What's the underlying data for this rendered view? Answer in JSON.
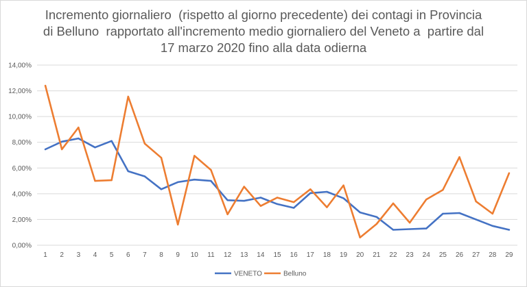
{
  "chart_data": {
    "type": "line",
    "title_lines": [
      "Incremento giornaliero  (rispetto al giorno precedente) dei contagi in Provincia",
      "di Belluno  rapportato all'incremento medio giornaliero del Veneto a  partire dal",
      "17 marzo 2020 fino alla data odierna"
    ],
    "categories": [
      "1",
      "2",
      "3",
      "4",
      "5",
      "6",
      "7",
      "8",
      "9",
      "10",
      "11",
      "12",
      "13",
      "14",
      "15",
      "16",
      "17",
      "18",
      "19",
      "20",
      "21",
      "22",
      "23",
      "24",
      "25",
      "26",
      "27",
      "28",
      "29"
    ],
    "y_ticks": [
      "0,00%",
      "2,00%",
      "4,00%",
      "6,00%",
      "8,00%",
      "10,00%",
      "12,00%",
      "14,00%"
    ],
    "ylim": [
      0,
      14
    ],
    "series": [
      {
        "name": "VENETO",
        "color": "#4472c4",
        "values": [
          7.45,
          8.05,
          8.3,
          7.6,
          8.1,
          5.75,
          5.35,
          4.35,
          4.9,
          5.1,
          5.0,
          3.5,
          3.45,
          3.7,
          3.2,
          2.9,
          4.05,
          4.15,
          3.65,
          2.55,
          2.2,
          1.2,
          1.25,
          1.3,
          2.45,
          2.5,
          2.0,
          1.5,
          1.2
        ]
      },
      {
        "name": "Belluno",
        "color": "#ed7d31",
        "values": [
          12.4,
          7.45,
          9.15,
          5.0,
          5.05,
          11.55,
          7.9,
          6.8,
          1.6,
          6.95,
          5.85,
          2.4,
          4.55,
          3.05,
          3.7,
          3.35,
          4.35,
          2.95,
          4.65,
          0.6,
          1.65,
          3.25,
          1.75,
          3.55,
          4.3,
          6.85,
          3.4,
          2.45,
          5.6
        ]
      }
    ],
    "legend_position": "bottom"
  }
}
